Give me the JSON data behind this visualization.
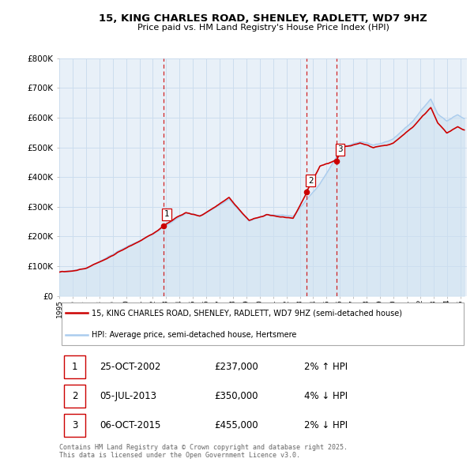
{
  "title": "15, KING CHARLES ROAD, SHENLEY, RADLETT, WD7 9HZ",
  "subtitle": "Price paid vs. HM Land Registry's House Price Index (HPI)",
  "legend_line1": "15, KING CHARLES ROAD, SHENLEY, RADLETT, WD7 9HZ (semi-detached house)",
  "legend_line2": "HPI: Average price, semi-detached house, Hertsmere",
  "red_color": "#cc0000",
  "blue_color": "#aaccee",
  "blue_fill": "#cce0f0",
  "xlabel": "",
  "ylabel": "",
  "ylim": [
    0,
    800000
  ],
  "yticks": [
    0,
    100000,
    200000,
    300000,
    400000,
    500000,
    600000,
    700000,
    800000
  ],
  "ytick_labels": [
    "£0",
    "£100K",
    "£200K",
    "£300K",
    "£400K",
    "£500K",
    "£600K",
    "£700K",
    "£800K"
  ],
  "xmin": 1995.0,
  "xmax": 2025.5,
  "xticks": [
    1995,
    1996,
    1997,
    1998,
    1999,
    2000,
    2001,
    2002,
    2003,
    2004,
    2005,
    2006,
    2007,
    2008,
    2009,
    2010,
    2011,
    2012,
    2013,
    2014,
    2015,
    2016,
    2017,
    2018,
    2019,
    2020,
    2021,
    2022,
    2023,
    2024,
    2025
  ],
  "sale_dates": [
    2002.82,
    2013.51,
    2015.76
  ],
  "sale_prices": [
    237000,
    350000,
    455000
  ],
  "sale_labels": [
    "1",
    "2",
    "3"
  ],
  "sale_info": [
    {
      "label": "1",
      "date": "25-OCT-2002",
      "price": "£237,000",
      "change": "2% ↑ HPI"
    },
    {
      "label": "2",
      "date": "05-JUL-2013",
      "price": "£350,000",
      "change": "4% ↓ HPI"
    },
    {
      "label": "3",
      "date": "06-OCT-2015",
      "price": "£455,000",
      "change": "2% ↓ HPI"
    }
  ],
  "footer": "Contains HM Land Registry data © Crown copyright and database right 2025.\nThis data is licensed under the Open Government Licence v3.0.",
  "background_color": "#ffffff",
  "grid_color": "#ccddee"
}
